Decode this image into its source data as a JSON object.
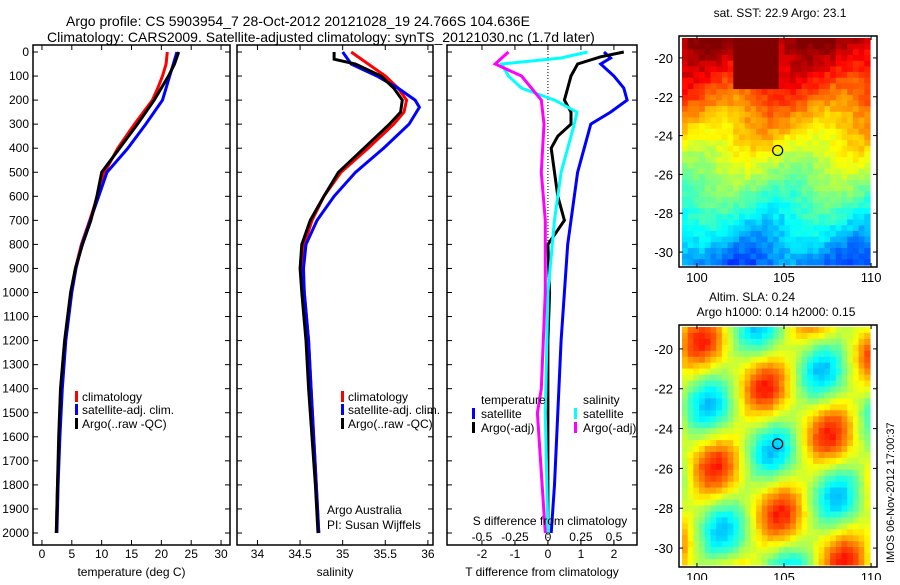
{
  "title": {
    "line1": "Argo profile: CS 5903954_7 28-Oct-2012 20121028_19 24.766S 104.636E",
    "line2": "Climatology: CARS2009. Satellite-adjusted climatology: synTS_20121030.nc (1.7d later)"
  },
  "side_stamp": "IMOS 06-Nov-2012 17:00:37",
  "depth_ticks": [
    0,
    100,
    200,
    300,
    400,
    500,
    600,
    700,
    800,
    900,
    1000,
    1100,
    1200,
    1300,
    1400,
    1500,
    1600,
    1700,
    1800,
    1900,
    2000
  ],
  "chart_data": [
    {
      "type": "line",
      "name": "temperature",
      "xlabel": "temperature (deg C)",
      "xticks": [
        0,
        5,
        10,
        15,
        20,
        25,
        30
      ],
      "xlim": [
        -1.5,
        31.5
      ],
      "ylim": [
        2050,
        0
      ],
      "legend": [
        "climatology",
        "satellite-adj. clim.",
        "Argo(..raw -QC)"
      ],
      "legend_placement": "lower-center",
      "series": [
        {
          "name": "climatology",
          "color": "#ff0000",
          "depth": [
            0,
            50,
            100,
            150,
            200,
            300,
            400,
            500,
            600,
            700,
            800,
            900,
            1000,
            1200,
            1400,
            1600,
            1800,
            2000
          ],
          "values": [
            21.0,
            20.8,
            20.2,
            19.4,
            18.5,
            15.5,
            12.7,
            10.5,
            9.3,
            8.0,
            6.6,
            5.6,
            4.9,
            3.9,
            3.3,
            2.9,
            2.6,
            2.4
          ]
        },
        {
          "name": "satellite-adj. clim.",
          "color": "#0000ff",
          "depth": [
            0,
            50,
            100,
            150,
            200,
            300,
            400,
            500,
            600,
            700,
            800,
            900,
            1000,
            1200,
            1400,
            1600,
            1800,
            2000
          ],
          "values": [
            22.6,
            22.0,
            21.4,
            20.8,
            20.2,
            17.4,
            14.4,
            10.9,
            9.5,
            8.1,
            6.7,
            5.7,
            5.0,
            4.0,
            3.4,
            3.0,
            2.7,
            2.5
          ]
        },
        {
          "name": "Argo(..raw -QC)",
          "color": "#000000",
          "depth": [
            0,
            50,
            100,
            150,
            200,
            300,
            400,
            500,
            600,
            700,
            800,
            900,
            1000,
            1200,
            1400,
            1600,
            1800,
            2000
          ],
          "values": [
            22.9,
            22.2,
            21.2,
            20.0,
            18.8,
            16.0,
            13.0,
            10.0,
            9.2,
            8.2,
            6.8,
            5.6,
            4.8,
            3.8,
            3.1,
            2.8,
            2.6,
            2.4
          ]
        }
      ]
    },
    {
      "type": "line",
      "name": "salinity",
      "xlabel": "salinity",
      "xticks": [
        34,
        34.5,
        35,
        35.5,
        36
      ],
      "xlim": [
        33.76,
        36.06
      ],
      "ylim": [
        2050,
        0
      ],
      "legend": [
        "climatology",
        "satellite-adj. clim.",
        "Argo(..raw -QC)"
      ],
      "annotations": [
        "Argo Australia",
        "PI: Susan Wijffels"
      ],
      "series": [
        {
          "name": "climatology",
          "color": "#ff0000",
          "depth": [
            0,
            50,
            100,
            150,
            200,
            250,
            300,
            400,
            500,
            600,
            700,
            800,
            900,
            1000,
            1200,
            1400,
            1600,
            1800,
            2000
          ],
          "values": [
            35.1,
            35.3,
            35.5,
            35.65,
            35.75,
            35.72,
            35.6,
            35.3,
            34.98,
            34.78,
            34.64,
            34.55,
            34.53,
            34.55,
            34.6,
            34.63,
            34.66,
            34.69,
            34.72
          ]
        },
        {
          "name": "satellite-adj. clim.",
          "color": "#0000ff",
          "depth": [
            0,
            50,
            100,
            150,
            200,
            230,
            300,
            400,
            500,
            600,
            700,
            800,
            900,
            1000,
            1200,
            1400,
            1600,
            1800,
            2000
          ],
          "values": [
            35.0,
            35.1,
            35.4,
            35.65,
            35.85,
            35.9,
            35.78,
            35.48,
            35.15,
            34.9,
            34.7,
            34.57,
            34.54,
            34.55,
            34.6,
            34.63,
            34.66,
            34.69,
            34.72
          ]
        },
        {
          "name": "Argo(..raw -QC)",
          "color": "#000000",
          "depth": [
            0,
            30,
            50,
            100,
            150,
            200,
            250,
            300,
            400,
            500,
            600,
            700,
            800,
            900,
            1000,
            1200,
            1400,
            1600,
            1800,
            2000
          ],
          "values": [
            34.9,
            34.9,
            35.15,
            35.45,
            35.6,
            35.7,
            35.68,
            35.55,
            35.25,
            34.95,
            34.78,
            34.62,
            34.52,
            34.5,
            34.52,
            34.57,
            34.6,
            34.64,
            34.68,
            34.71
          ]
        }
      ]
    },
    {
      "type": "line",
      "name": "differences",
      "xlabel": "T difference from climatology",
      "xlabel2": "S difference from climatology",
      "xticks": [
        -2,
        -1,
        0,
        1,
        2
      ],
      "xticks2": [
        -0.5,
        -0.25,
        0,
        0.25,
        0.5
      ],
      "xtick2_labels": [
        "-0.5",
        "-0.25",
        "0",
        "0.25",
        "0.5"
      ],
      "xlim": [
        -3.06,
        2.7
      ],
      "ylim": [
        2050,
        0
      ],
      "legend_headers": [
        "temperature",
        "salinity"
      ],
      "legend": [
        "satellite",
        "Argo(-adj)",
        "satellite",
        "Argo(-adj)"
      ],
      "series": [
        {
          "name": "T satellite",
          "color": "#0000ff",
          "scale": "T",
          "depth": [
            0,
            25,
            50,
            100,
            150,
            200,
            250,
            300,
            400,
            500,
            600,
            800,
            1000,
            1200,
            1500,
            1800,
            2000
          ],
          "values": [
            1.7,
            1.9,
            1.6,
            2.0,
            2.3,
            2.4,
            1.9,
            1.3,
            1.1,
            0.9,
            0.8,
            0.6,
            0.5,
            0.4,
            0.3,
            0.2,
            0.1
          ]
        },
        {
          "name": "T Argo(-adj)",
          "color": "#000000",
          "scale": "T",
          "depth": [
            0,
            20,
            50,
            100,
            150,
            200,
            250,
            300,
            350,
            400,
            500,
            600,
            700,
            800,
            1000,
            1200,
            1500,
            2000
          ],
          "values": [
            2.3,
            1.6,
            0.9,
            0.7,
            0.6,
            0.5,
            0.7,
            0.7,
            0.3,
            0.1,
            0.2,
            0.3,
            0.5,
            0.0,
            0.05,
            0.0,
            0.0,
            0.0
          ]
        },
        {
          "name": "S satellite",
          "color": "#00ffff",
          "scale": "S",
          "depth": [
            0,
            25,
            50,
            100,
            150,
            200,
            250,
            300,
            400,
            500,
            700,
            1000,
            1500,
            2000
          ],
          "values": [
            0.3,
            0.1,
            -0.35,
            -0.3,
            -0.2,
            0.05,
            0.22,
            0.2,
            0.15,
            0.1,
            0.05,
            0.0,
            -0.02,
            0.0
          ]
        },
        {
          "name": "S Argo(-adj)",
          "color": "#ff00ff",
          "scale": "S",
          "depth": [
            0,
            50,
            100,
            200,
            300,
            500,
            700,
            1000,
            1400,
            1500,
            2000
          ],
          "values": [
            -0.3,
            -0.4,
            -0.2,
            -0.05,
            -0.03,
            -0.05,
            -0.02,
            -0.02,
            -0.05,
            -0.08,
            -0.02
          ]
        }
      ]
    },
    {
      "type": "heatmap",
      "name": "sst-map",
      "title": "sat. SST: 22.9 Argo: 23.1",
      "xticks": [
        100,
        105,
        110
      ],
      "yticks": [
        -20,
        -22,
        -24,
        -26,
        -28,
        -30
      ],
      "xlim": [
        98.97,
        110.34
      ],
      "ylim": [
        -30.77,
        -18.87
      ],
      "marker": {
        "lon": 104.636,
        "lat": -24.766
      }
    },
    {
      "type": "heatmap",
      "name": "sla-map",
      "title": "Altim. SLA: 0.24",
      "subtitle": "Argo h1000: 0.14 h2000: 0.15",
      "xticks": [
        100,
        105,
        110
      ],
      "yticks": [
        -20,
        -22,
        -24,
        -26,
        -28,
        -30
      ],
      "xlim": [
        98.97,
        110.34
      ],
      "ylim": [
        -30.95,
        -18.8
      ],
      "marker": {
        "lon": 104.636,
        "lat": -24.766
      }
    }
  ]
}
